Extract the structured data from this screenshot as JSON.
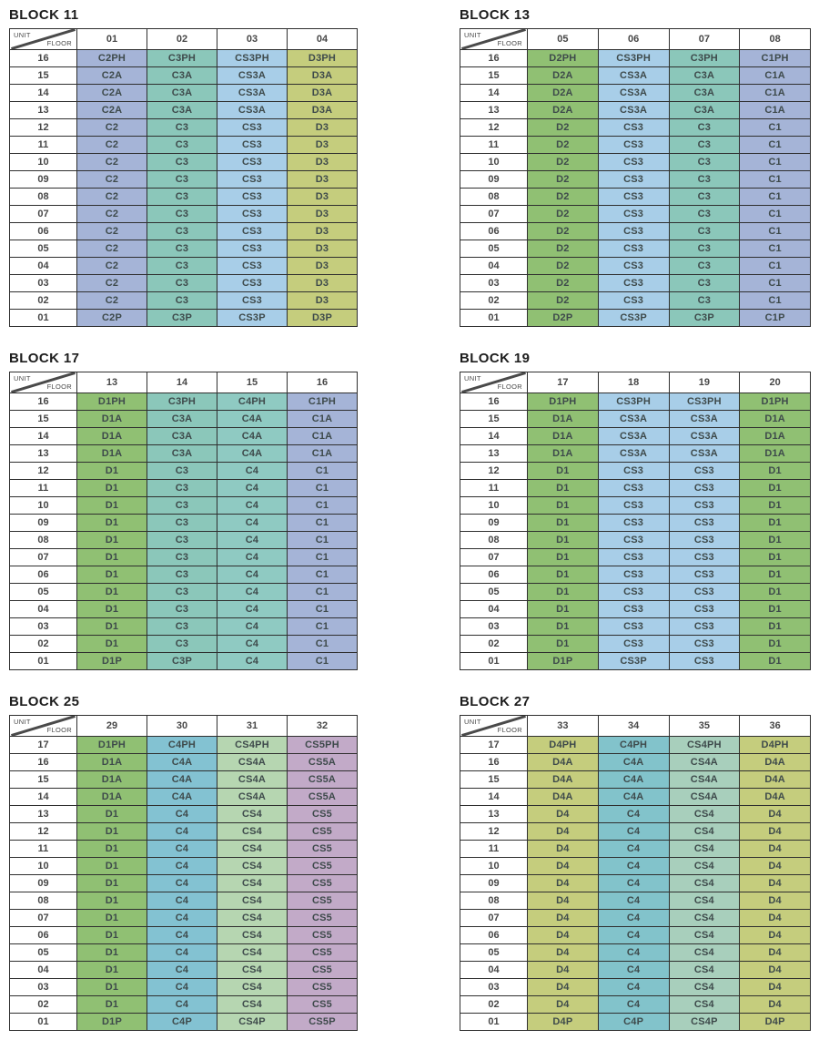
{
  "page": {
    "corner": {
      "unit_label": "UNIT",
      "floor_label": "FLOOR"
    }
  },
  "blocks": [
    {
      "title": "BLOCK 11",
      "units": [
        "01",
        "02",
        "03",
        "04"
      ],
      "column_colors": [
        "#a5b4d7",
        "#8bc7ba",
        "#a8cee8",
        "#c5cd7d"
      ],
      "floors": [
        "16",
        "15",
        "14",
        "13",
        "12",
        "11",
        "10",
        "09",
        "08",
        "07",
        "06",
        "05",
        "04",
        "03",
        "02",
        "01"
      ],
      "rows": [
        [
          "C2PH",
          "C3PH",
          "CS3PH",
          "D3PH"
        ],
        [
          "C2A",
          "C3A",
          "CS3A",
          "D3A"
        ],
        [
          "C2A",
          "C3A",
          "CS3A",
          "D3A"
        ],
        [
          "C2A",
          "C3A",
          "CS3A",
          "D3A"
        ],
        [
          "C2",
          "C3",
          "CS3",
          "D3"
        ],
        [
          "C2",
          "C3",
          "CS3",
          "D3"
        ],
        [
          "C2",
          "C3",
          "CS3",
          "D3"
        ],
        [
          "C2",
          "C3",
          "CS3",
          "D3"
        ],
        [
          "C2",
          "C3",
          "CS3",
          "D3"
        ],
        [
          "C2",
          "C3",
          "CS3",
          "D3"
        ],
        [
          "C2",
          "C3",
          "CS3",
          "D3"
        ],
        [
          "C2",
          "C3",
          "CS3",
          "D3"
        ],
        [
          "C2",
          "C3",
          "CS3",
          "D3"
        ],
        [
          "C2",
          "C3",
          "CS3",
          "D3"
        ],
        [
          "C2",
          "C3",
          "CS3",
          "D3"
        ],
        [
          "C2P",
          "C3P",
          "CS3P",
          "D3P"
        ]
      ]
    },
    {
      "title": "BLOCK 13",
      "units": [
        "05",
        "06",
        "07",
        "08"
      ],
      "column_colors": [
        "#90c073",
        "#a8cee8",
        "#8bc7ba",
        "#a5b4d7"
      ],
      "floors": [
        "16",
        "15",
        "14",
        "13",
        "12",
        "11",
        "10",
        "09",
        "08",
        "07",
        "06",
        "05",
        "04",
        "03",
        "02",
        "01"
      ],
      "rows": [
        [
          "D2PH",
          "CS3PH",
          "C3PH",
          "C1PH"
        ],
        [
          "D2A",
          "CS3A",
          "C3A",
          "C1A"
        ],
        [
          "D2A",
          "CS3A",
          "C3A",
          "C1A"
        ],
        [
          "D2A",
          "CS3A",
          "C3A",
          "C1A"
        ],
        [
          "D2",
          "CS3",
          "C3",
          "C1"
        ],
        [
          "D2",
          "CS3",
          "C3",
          "C1"
        ],
        [
          "D2",
          "CS3",
          "C3",
          "C1"
        ],
        [
          "D2",
          "CS3",
          "C3",
          "C1"
        ],
        [
          "D2",
          "CS3",
          "C3",
          "C1"
        ],
        [
          "D2",
          "CS3",
          "C3",
          "C1"
        ],
        [
          "D2",
          "CS3",
          "C3",
          "C1"
        ],
        [
          "D2",
          "CS3",
          "C3",
          "C1"
        ],
        [
          "D2",
          "CS3",
          "C3",
          "C1"
        ],
        [
          "D2",
          "CS3",
          "C3",
          "C1"
        ],
        [
          "D2",
          "CS3",
          "C3",
          "C1"
        ],
        [
          "D2P",
          "CS3P",
          "C3P",
          "C1P"
        ]
      ]
    },
    {
      "title": "BLOCK 17",
      "units": [
        "13",
        "14",
        "15",
        "16"
      ],
      "column_colors": [
        "#90c073",
        "#8bc7ba",
        "#8fcac2",
        "#a5b4d7"
      ],
      "floors": [
        "16",
        "15",
        "14",
        "13",
        "12",
        "11",
        "10",
        "09",
        "08",
        "07",
        "06",
        "05",
        "04",
        "03",
        "02",
        "01"
      ],
      "rows": [
        [
          "D1PH",
          "C3PH",
          "C4PH",
          "C1PH"
        ],
        [
          "D1A",
          "C3A",
          "C4A",
          "C1A"
        ],
        [
          "D1A",
          "C3A",
          "C4A",
          "C1A"
        ],
        [
          "D1A",
          "C3A",
          "C4A",
          "C1A"
        ],
        [
          "D1",
          "C3",
          "C4",
          "C1"
        ],
        [
          "D1",
          "C3",
          "C4",
          "C1"
        ],
        [
          "D1",
          "C3",
          "C4",
          "C1"
        ],
        [
          "D1",
          "C3",
          "C4",
          "C1"
        ],
        [
          "D1",
          "C3",
          "C4",
          "C1"
        ],
        [
          "D1",
          "C3",
          "C4",
          "C1"
        ],
        [
          "D1",
          "C3",
          "C4",
          "C1"
        ],
        [
          "D1",
          "C3",
          "C4",
          "C1"
        ],
        [
          "D1",
          "C3",
          "C4",
          "C1"
        ],
        [
          "D1",
          "C3",
          "C4",
          "C1"
        ],
        [
          "D1",
          "C3",
          "C4",
          "C1"
        ],
        [
          "D1P",
          "C3P",
          "C4",
          "C1"
        ]
      ]
    },
    {
      "title": "BLOCK 19",
      "units": [
        "17",
        "18",
        "19",
        "20"
      ],
      "column_colors": [
        "#90c073",
        "#a8cee8",
        "#a8cee8",
        "#90c073"
      ],
      "floors": [
        "16",
        "15",
        "14",
        "13",
        "12",
        "11",
        "10",
        "09",
        "08",
        "07",
        "06",
        "05",
        "04",
        "03",
        "02",
        "01"
      ],
      "rows": [
        [
          "D1PH",
          "CS3PH",
          "CS3PH",
          "D1PH"
        ],
        [
          "D1A",
          "CS3A",
          "CS3A",
          "D1A"
        ],
        [
          "D1A",
          "CS3A",
          "CS3A",
          "D1A"
        ],
        [
          "D1A",
          "CS3A",
          "CS3A",
          "D1A"
        ],
        [
          "D1",
          "CS3",
          "CS3",
          "D1"
        ],
        [
          "D1",
          "CS3",
          "CS3",
          "D1"
        ],
        [
          "D1",
          "CS3",
          "CS3",
          "D1"
        ],
        [
          "D1",
          "CS3",
          "CS3",
          "D1"
        ],
        [
          "D1",
          "CS3",
          "CS3",
          "D1"
        ],
        [
          "D1",
          "CS3",
          "CS3",
          "D1"
        ],
        [
          "D1",
          "CS3",
          "CS3",
          "D1"
        ],
        [
          "D1",
          "CS3",
          "CS3",
          "D1"
        ],
        [
          "D1",
          "CS3",
          "CS3",
          "D1"
        ],
        [
          "D1",
          "CS3",
          "CS3",
          "D1"
        ],
        [
          "D1",
          "CS3",
          "CS3",
          "D1"
        ],
        [
          "D1P",
          "CS3P",
          "CS3",
          "D1"
        ]
      ]
    },
    {
      "title": "BLOCK 25",
      "units": [
        "29",
        "30",
        "31",
        "32"
      ],
      "column_colors": [
        "#90c073",
        "#83c2d2",
        "#b6d6b1",
        "#c2aac8"
      ],
      "floors": [
        "17",
        "16",
        "15",
        "14",
        "13",
        "12",
        "11",
        "10",
        "09",
        "08",
        "07",
        "06",
        "05",
        "04",
        "03",
        "02",
        "01"
      ],
      "rows": [
        [
          "D1PH",
          "C4PH",
          "CS4PH",
          "CS5PH"
        ],
        [
          "D1A",
          "C4A",
          "CS4A",
          "CS5A"
        ],
        [
          "D1A",
          "C4A",
          "CS4A",
          "CS5A"
        ],
        [
          "D1A",
          "C4A",
          "CS4A",
          "CS5A"
        ],
        [
          "D1",
          "C4",
          "CS4",
          "CS5"
        ],
        [
          "D1",
          "C4",
          "CS4",
          "CS5"
        ],
        [
          "D1",
          "C4",
          "CS4",
          "CS5"
        ],
        [
          "D1",
          "C4",
          "CS4",
          "CS5"
        ],
        [
          "D1",
          "C4",
          "CS4",
          "CS5"
        ],
        [
          "D1",
          "C4",
          "CS4",
          "CS5"
        ],
        [
          "D1",
          "C4",
          "CS4",
          "CS5"
        ],
        [
          "D1",
          "C4",
          "CS4",
          "CS5"
        ],
        [
          "D1",
          "C4",
          "CS4",
          "CS5"
        ],
        [
          "D1",
          "C4",
          "CS4",
          "CS5"
        ],
        [
          "D1",
          "C4",
          "CS4",
          "CS5"
        ],
        [
          "D1",
          "C4",
          "CS4",
          "CS5"
        ],
        [
          "D1P",
          "C4P",
          "CS4P",
          "CS5P"
        ]
      ]
    },
    {
      "title": "BLOCK 27",
      "units": [
        "33",
        "34",
        "35",
        "36"
      ],
      "column_colors": [
        "#c5cd7d",
        "#82c3cb",
        "#a8cfbc",
        "#c5cd7d"
      ],
      "floors": [
        "17",
        "16",
        "15",
        "14",
        "13",
        "12",
        "11",
        "10",
        "09",
        "08",
        "07",
        "06",
        "05",
        "04",
        "03",
        "02",
        "01"
      ],
      "rows": [
        [
          "D4PH",
          "C4PH",
          "CS4PH",
          "D4PH"
        ],
        [
          "D4A",
          "C4A",
          "CS4A",
          "D4A"
        ],
        [
          "D4A",
          "C4A",
          "CS4A",
          "D4A"
        ],
        [
          "D4A",
          "C4A",
          "CS4A",
          "D4A"
        ],
        [
          "D4",
          "C4",
          "CS4",
          "D4"
        ],
        [
          "D4",
          "C4",
          "CS4",
          "D4"
        ],
        [
          "D4",
          "C4",
          "CS4",
          "D4"
        ],
        [
          "D4",
          "C4",
          "CS4",
          "D4"
        ],
        [
          "D4",
          "C4",
          "CS4",
          "D4"
        ],
        [
          "D4",
          "C4",
          "CS4",
          "D4"
        ],
        [
          "D4",
          "C4",
          "CS4",
          "D4"
        ],
        [
          "D4",
          "C4",
          "CS4",
          "D4"
        ],
        [
          "D4",
          "C4",
          "CS4",
          "D4"
        ],
        [
          "D4",
          "C4",
          "CS4",
          "D4"
        ],
        [
          "D4",
          "C4",
          "CS4",
          "D4"
        ],
        [
          "D4",
          "C4",
          "CS4",
          "D4"
        ],
        [
          "D4P",
          "C4P",
          "CS4P",
          "D4P"
        ]
      ]
    }
  ]
}
